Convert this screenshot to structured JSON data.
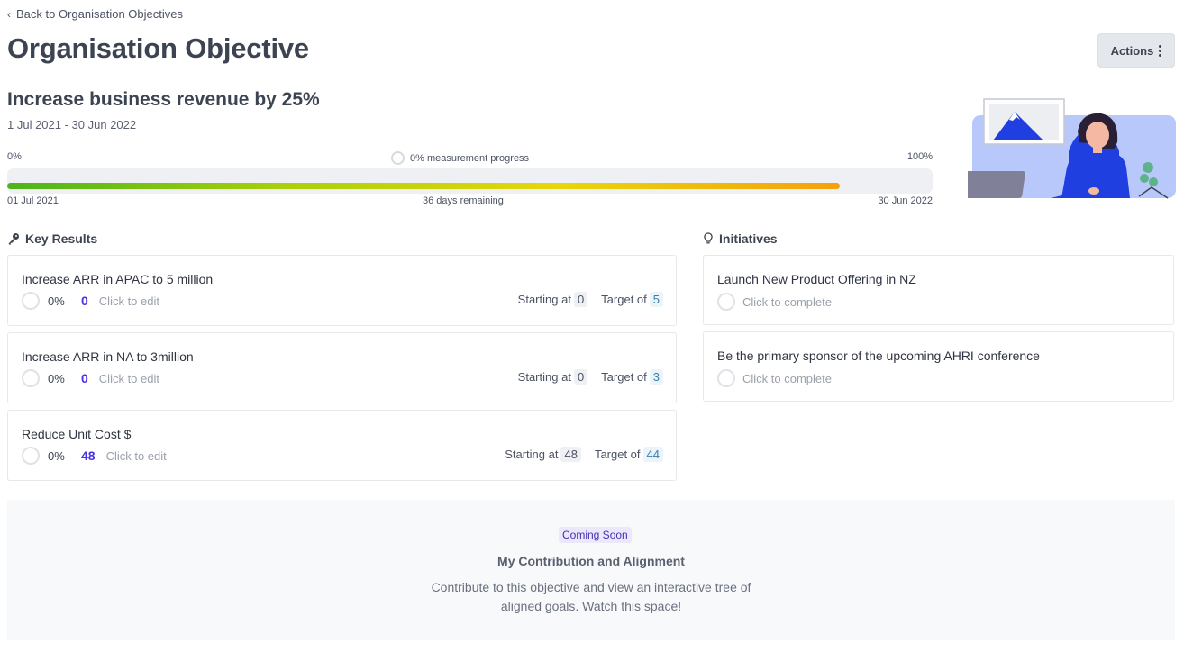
{
  "nav": {
    "back_label": "Back to Organisation Objectives"
  },
  "page_title": "Organisation Objective",
  "actions_label": "Actions",
  "objective": {
    "title": "Increase business revenue by 25%",
    "dates": "1 Jul 2021 - 30 Jun 2022"
  },
  "progress": {
    "min_label": "0%",
    "max_label": "100%",
    "measurement_label": "0% measurement progress",
    "time_elapsed_fraction": 0.9,
    "start_date": "01 Jul 2021",
    "end_date": "30 Jun 2022",
    "remaining_label": "36 days remaining",
    "gradient_colors": [
      "#4cb41a",
      "#a9d00a",
      "#e8d60a",
      "#f5a10c"
    ]
  },
  "key_results": {
    "heading": "Key Results",
    "starting_label": "Starting at",
    "target_label": "Target of",
    "edit_label": "Click to edit",
    "items": [
      {
        "title": "Increase ARR in APAC to 5 million",
        "percent": "0%",
        "current": "0",
        "start": "0",
        "target": "5"
      },
      {
        "title": "Increase ARR in NA to 3million",
        "percent": "0%",
        "current": "0",
        "start": "0",
        "target": "3"
      },
      {
        "title": "Reduce Unit Cost $",
        "percent": "0%",
        "current": "48",
        "start": "48",
        "target": "44"
      }
    ]
  },
  "initiatives": {
    "heading": "Initiatives",
    "complete_label": "Click to complete",
    "items": [
      {
        "title": "Launch New Product Offering in NZ"
      },
      {
        "title": "Be the primary sponsor of the upcoming AHRI conference"
      }
    ]
  },
  "coming_soon": {
    "badge": "Coming Soon",
    "heading": "My Contribution and Alignment",
    "line1": "Contribute to this objective and view an interactive tree of",
    "line2": "aligned goals. Watch this space!"
  },
  "colors": {
    "accent": "#4730e6",
    "illustration_blue": "#1f3fe0",
    "illustration_bg": "#b8c8fb"
  }
}
